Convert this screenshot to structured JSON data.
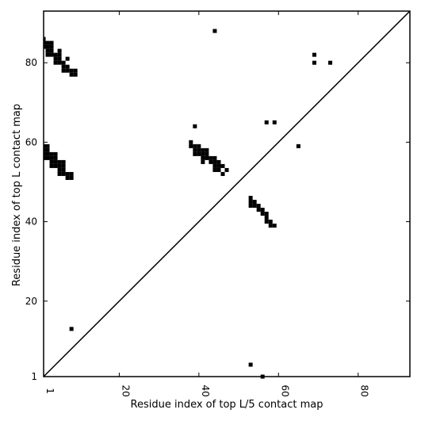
{
  "chart_data": {
    "type": "scatter",
    "xlabel": "Residue index of top L/5 contact map",
    "ylabel": "Residue index of top L contact map",
    "xlim": [
      1,
      93
    ],
    "ylim": [
      1,
      93
    ],
    "xticks": [
      1,
      20,
      40,
      60,
      80
    ],
    "yticks": [
      1,
      20,
      40,
      60,
      80
    ],
    "diagonal": true,
    "marker_color": "#000000",
    "series": [
      {
        "values": [
          [
            1,
            86
          ],
          [
            1,
            85
          ],
          [
            2,
            85
          ],
          [
            3,
            85
          ],
          [
            1,
            84
          ],
          [
            2,
            84
          ],
          [
            3,
            84
          ],
          [
            2,
            83
          ],
          [
            3,
            83
          ],
          [
            5,
            83
          ],
          [
            2,
            82
          ],
          [
            3,
            82
          ],
          [
            4,
            82
          ],
          [
            5,
            82
          ],
          [
            4,
            81
          ],
          [
            5,
            81
          ],
          [
            7,
            81
          ],
          [
            4,
            80
          ],
          [
            5,
            80
          ],
          [
            6,
            80
          ],
          [
            6,
            79
          ],
          [
            7,
            79
          ],
          [
            6,
            78
          ],
          [
            7,
            78
          ],
          [
            8,
            78
          ],
          [
            9,
            78
          ],
          [
            8,
            77
          ],
          [
            9,
            77
          ],
          [
            1,
            59
          ],
          [
            2,
            59
          ],
          [
            1,
            58
          ],
          [
            2,
            58
          ],
          [
            1,
            57
          ],
          [
            2,
            57
          ],
          [
            3,
            57
          ],
          [
            4,
            57
          ],
          [
            1,
            56
          ],
          [
            2,
            56
          ],
          [
            3,
            56
          ],
          [
            4,
            56
          ],
          [
            3,
            55
          ],
          [
            4,
            55
          ],
          [
            5,
            55
          ],
          [
            6,
            55
          ],
          [
            3,
            54
          ],
          [
            4,
            54
          ],
          [
            5,
            54
          ],
          [
            6,
            54
          ],
          [
            5,
            53
          ],
          [
            6,
            53
          ],
          [
            5,
            52
          ],
          [
            6,
            52
          ],
          [
            7,
            52
          ],
          [
            8,
            52
          ],
          [
            7,
            51
          ],
          [
            8,
            51
          ],
          [
            8,
            13
          ],
          [
            39,
            64
          ],
          [
            38,
            60
          ],
          [
            38,
            59
          ],
          [
            39,
            59
          ],
          [
            40,
            59
          ],
          [
            39,
            58
          ],
          [
            40,
            58
          ],
          [
            41,
            58
          ],
          [
            42,
            58
          ],
          [
            39,
            57
          ],
          [
            40,
            57
          ],
          [
            41,
            57
          ],
          [
            42,
            57
          ],
          [
            41,
            56
          ],
          [
            42,
            56
          ],
          [
            43,
            56
          ],
          [
            44,
            56
          ],
          [
            41,
            55
          ],
          [
            43,
            55
          ],
          [
            44,
            55
          ],
          [
            45,
            55
          ],
          [
            44,
            54
          ],
          [
            45,
            54
          ],
          [
            46,
            54
          ],
          [
            44,
            53
          ],
          [
            45,
            53
          ],
          [
            47,
            53
          ],
          [
            46,
            52
          ],
          [
            57,
            65
          ],
          [
            59,
            65
          ],
          [
            65,
            59
          ],
          [
            69,
            82
          ],
          [
            69,
            80
          ],
          [
            73,
            80
          ],
          [
            44,
            88
          ],
          [
            53,
            46
          ],
          [
            53,
            45
          ],
          [
            54,
            45
          ],
          [
            53,
            44
          ],
          [
            54,
            44
          ],
          [
            55,
            44
          ],
          [
            55,
            43
          ],
          [
            56,
            43
          ],
          [
            56,
            42
          ],
          [
            57,
            42
          ],
          [
            57,
            41
          ],
          [
            57,
            40
          ],
          [
            58,
            40
          ],
          [
            58,
            39
          ],
          [
            59,
            39
          ],
          [
            53,
            4
          ],
          [
            56,
            1
          ]
        ]
      }
    ]
  }
}
